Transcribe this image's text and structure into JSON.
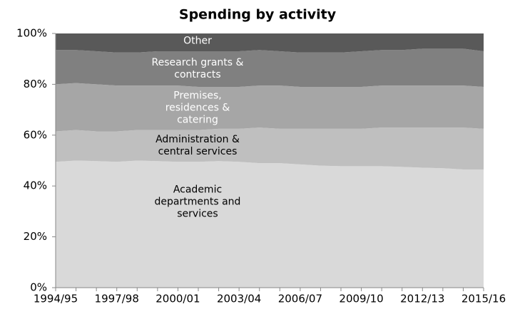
{
  "chart_data": {
    "type": "stacked-area",
    "title": "Spending by activity",
    "categories": [
      "1994/95",
      null,
      null,
      "1997/98",
      null,
      null,
      "2000/01",
      null,
      null,
      "2003/04",
      null,
      null,
      "2006/07",
      null,
      null,
      "2009/10",
      null,
      null,
      "2012/13",
      null,
      null,
      "2015/16"
    ],
    "series": [
      {
        "name": "Academic departments and services",
        "color": "#d9d9d9",
        "text_color": "#000000",
        "values": [
          49.5,
          50,
          49.8,
          49.5,
          50,
          49.8,
          49.5,
          49.5,
          49.8,
          49.5,
          49,
          49,
          48.5,
          48,
          47.8,
          47.8,
          47.8,
          47.5,
          47.2,
          47,
          46.5,
          46.5
        ]
      },
      {
        "name": "Administration & central services",
        "color": "#bfbfbf",
        "text_color": "#000000",
        "values": [
          12,
          12,
          11.7,
          12,
          12,
          12.2,
          12.5,
          12.5,
          12.7,
          13,
          14,
          13.5,
          14,
          14.5,
          14.7,
          14.7,
          15.2,
          15.5,
          15.8,
          16,
          16.5,
          16
        ]
      },
      {
        "name": "Premises, residences & catering",
        "color": "#a6a6a6",
        "text_color": "#ffffff",
        "values": [
          18.5,
          18.5,
          18.5,
          18,
          17.5,
          17.5,
          17.5,
          17,
          16.5,
          16.5,
          16.5,
          17,
          16.5,
          16.5,
          16.5,
          16.5,
          16.5,
          16.5,
          16.5,
          16.5,
          16.5,
          16.5
        ]
      },
      {
        "name": "Research grants & contracts",
        "color": "#808080",
        "text_color": "#ffffff",
        "values": [
          13.5,
          13,
          13,
          13,
          13,
          13.5,
          13.5,
          14,
          14,
          14,
          14,
          13.5,
          13.5,
          13.5,
          13.5,
          14,
          14,
          14,
          14.5,
          14.5,
          14.5,
          14
        ]
      },
      {
        "name": "Other",
        "color": "#595959",
        "text_color": "#ffffff",
        "values": [
          6.5,
          6.5,
          7,
          7.5,
          7.5,
          7,
          7,
          7,
          7,
          7,
          6.5,
          7,
          7.5,
          7.5,
          7.5,
          7,
          6.5,
          6.5,
          6,
          6,
          6,
          7
        ]
      }
    ],
    "ylim": [
      0,
      100
    ],
    "yticks": [
      {
        "value": 0,
        "label": "0%"
      },
      {
        "value": 20,
        "label": "20%"
      },
      {
        "value": 40,
        "label": "40%"
      },
      {
        "value": 60,
        "label": "60%"
      },
      {
        "value": 80,
        "label": "80%"
      },
      {
        "value": 100,
        "label": "100%"
      }
    ]
  }
}
